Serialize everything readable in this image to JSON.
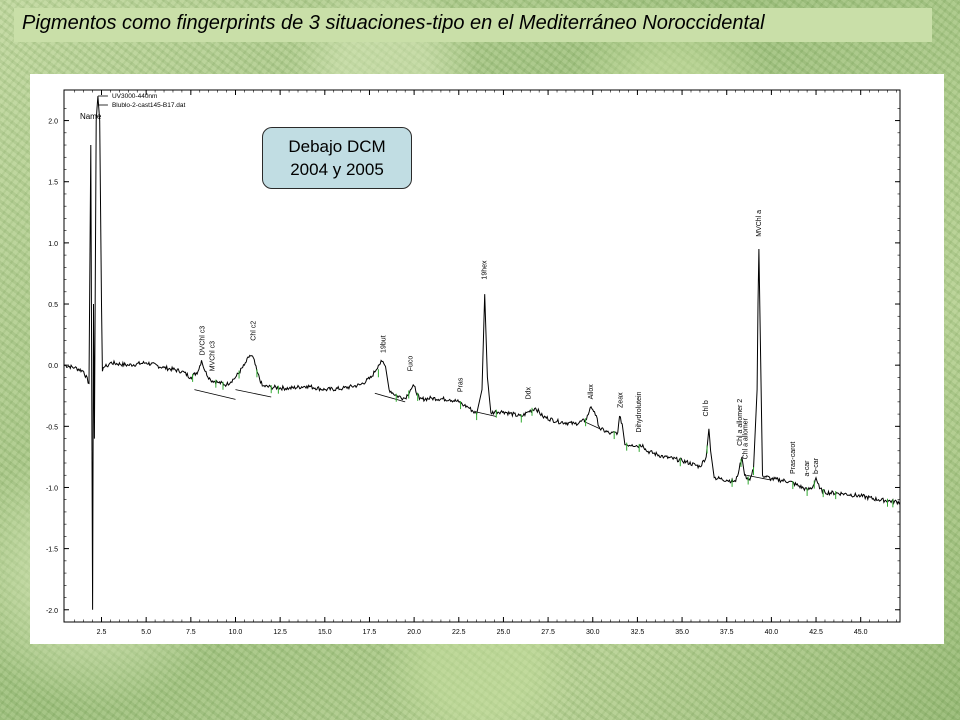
{
  "slide": {
    "title": "Pigmentos como fingerprints de 3 situaciones-tipo en el Mediterráneo Noroccidental"
  },
  "note": {
    "line1": "Debajo DCM",
    "line2": "2004 y 2005"
  },
  "chart_data": {
    "type": "line",
    "title": "",
    "xlabel": "",
    "ylabel": "",
    "legend_lines": [
      "UV3000-440nm",
      "Blublo-2-cast145-B17.dat",
      "Name"
    ],
    "legend_placement": "top-left",
    "xlim": [
      0.4,
      47.2
    ],
    "ylim": [
      -2.1,
      2.25
    ],
    "x_ticks": [
      "2.5",
      "5.0",
      "7.5",
      "10.0",
      "12.5",
      "15.0",
      "17.5",
      "20.0",
      "22.5",
      "25.0",
      "27.5",
      "30.0",
      "32.5",
      "35.0",
      "37.5",
      "40.0",
      "42.5",
      "45.0"
    ],
    "y_ticks": [
      "2.0",
      "1.5",
      "1.0",
      "0.5",
      "0.0",
      "-0.5",
      "-1.0",
      "-1.5",
      "-2.0"
    ],
    "grid": false,
    "line_color": "#000000",
    "integration_color": "#2fa82f",
    "series": [
      {
        "name": "UV3000-440nm",
        "x": [
          0.4,
          1.0,
          1.5,
          1.8,
          1.9,
          2.0,
          2.05,
          2.1,
          2.2,
          2.3,
          2.4,
          2.5,
          2.55,
          2.6,
          2.7,
          2.8,
          3.0,
          4.0,
          5.0,
          6.0,
          7.0,
          7.5,
          7.9,
          8.1,
          8.3,
          8.6,
          9.0,
          9.5,
          10.0,
          10.5,
          10.8,
          11.0,
          11.2,
          11.5,
          12.0,
          13.0,
          14.0,
          15.0,
          16.0,
          17.0,
          17.6,
          18.0,
          18.2,
          18.4,
          18.6,
          19.0,
          19.5,
          19.8,
          20.0,
          20.3,
          21.0,
          22.0,
          22.5,
          22.8,
          23.0,
          23.5,
          23.8,
          23.95,
          24.1,
          24.3,
          24.6,
          25.0,
          26.0,
          26.4,
          26.8,
          27.2,
          28.0,
          29.0,
          29.6,
          29.8,
          29.9,
          30.1,
          30.4,
          31.0,
          31.4,
          31.5,
          31.65,
          31.8,
          32.2,
          32.6,
          32.8,
          33.0,
          34.0,
          35.0,
          36.0,
          36.35,
          36.5,
          36.6,
          36.8,
          37.5,
          38.0,
          38.2,
          38.35,
          38.5,
          38.8,
          39.0,
          39.2,
          39.25,
          39.3,
          39.5,
          40.0,
          41.0,
          42.0,
          42.3,
          42.5,
          42.7,
          43.0,
          44.0,
          45.0,
          46.0,
          47.2
        ],
        "y": [
          0.0,
          -0.02,
          -0.05,
          -0.15,
          1.8,
          -2.0,
          0.5,
          -0.6,
          2.0,
          2.2,
          2.0,
          0.5,
          -0.05,
          -0.02,
          -0.01,
          -0.01,
          0.02,
          0.0,
          0.02,
          -0.02,
          -0.05,
          -0.1,
          -0.05,
          0.04,
          -0.05,
          -0.12,
          -0.14,
          -0.16,
          -0.1,
          0.0,
          0.08,
          0.06,
          -0.05,
          -0.17,
          -0.18,
          -0.19,
          -0.17,
          -0.2,
          -0.19,
          -0.16,
          -0.1,
          0.0,
          0.03,
          -0.01,
          -0.2,
          -0.25,
          -0.27,
          -0.2,
          -0.17,
          -0.28,
          -0.27,
          -0.28,
          -0.3,
          -0.33,
          -0.34,
          -0.4,
          -0.2,
          0.58,
          -0.1,
          -0.39,
          -0.38,
          -0.38,
          -0.42,
          -0.38,
          -0.35,
          -0.42,
          -0.46,
          -0.48,
          -0.45,
          -0.38,
          -0.34,
          -0.38,
          -0.52,
          -0.56,
          -0.55,
          -0.42,
          -0.48,
          -0.65,
          -0.65,
          -0.66,
          -0.65,
          -0.7,
          -0.75,
          -0.78,
          -0.83,
          -0.75,
          -0.52,
          -0.7,
          -0.92,
          -0.94,
          -0.95,
          -0.85,
          -0.75,
          -0.9,
          -0.94,
          -0.85,
          -0.2,
          0.5,
          0.95,
          -0.9,
          -0.93,
          -0.95,
          -1.02,
          -1.0,
          -0.92,
          -1.01,
          -1.04,
          -1.05,
          -1.07,
          -1.1,
          -1.12
        ]
      }
    ],
    "baseline_segments": [
      {
        "x": [
          7.7,
          10.0
        ],
        "y": [
          -0.2,
          -0.28
        ]
      },
      {
        "x": [
          10.0,
          12.0
        ],
        "y": [
          -0.2,
          -0.26
        ]
      },
      {
        "x": [
          17.8,
          19.5
        ],
        "y": [
          -0.23,
          -0.3
        ]
      },
      {
        "x": [
          23.4,
          24.6
        ],
        "y": [
          -0.38,
          -0.42
        ]
      },
      {
        "x": [
          29.5,
          30.4
        ],
        "y": [
          -0.46,
          -0.52
        ]
      },
      {
        "x": [
          38.6,
          40.0
        ],
        "y": [
          -0.9,
          -0.94
        ]
      }
    ],
    "integration_ticks_x": [
      7.6,
      8.9,
      9.3,
      10.2,
      11.2,
      12.0,
      12.4,
      18.0,
      19.0,
      19.7,
      20.2,
      22.6,
      23.5,
      24.6,
      26.0,
      26.6,
      29.6,
      31.2,
      31.9,
      32.6,
      34.9,
      36.4,
      37.8,
      38.3,
      38.7,
      39.0,
      41.2,
      42.0,
      42.4,
      42.9,
      43.6,
      46.5,
      46.8
    ],
    "peak_labels": [
      {
        "text": "DVChl c3",
        "x": 8.15,
        "y": 0.08
      },
      {
        "text": "MVChl c3",
        "x": 8.7,
        "y": -0.05
      },
      {
        "text": "Chl c2",
        "x": 11.0,
        "y": 0.2
      },
      {
        "text": "19but",
        "x": 18.3,
        "y": 0.1
      },
      {
        "text": "Fuco",
        "x": 19.8,
        "y": -0.05
      },
      {
        "text": "Pras",
        "x": 22.6,
        "y": -0.22
      },
      {
        "text": "19hex",
        "x": 23.95,
        "y": 0.7
      },
      {
        "text": "Ddx",
        "x": 26.4,
        "y": -0.28
      },
      {
        "text": "Allox",
        "x": 29.9,
        "y": -0.28
      },
      {
        "text": "Zeax",
        "x": 31.55,
        "y": -0.35
      },
      {
        "text": "Dihydrolutein",
        "x": 32.6,
        "y": -0.55
      },
      {
        "text": "Chl b",
        "x": 36.35,
        "y": -0.42
      },
      {
        "text": "Chl a allomer 2",
        "x": 38.25,
        "y": -0.66
      },
      {
        "text": "Chl a allomer",
        "x": 38.55,
        "y": -0.77
      },
      {
        "text": "MVChl a",
        "x": 39.3,
        "y": 1.05
      },
      {
        "text": "Pras-carot",
        "x": 41.2,
        "y": -0.89
      },
      {
        "text": "a-car",
        "x": 42.0,
        "y": -0.91
      },
      {
        "text": "b-car",
        "x": 42.5,
        "y": -0.89
      }
    ]
  }
}
